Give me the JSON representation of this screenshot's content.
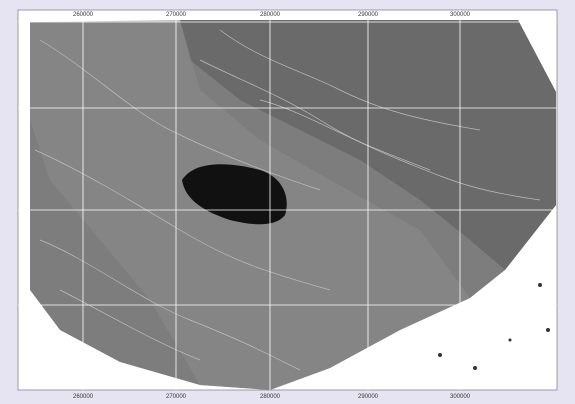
{
  "map": {
    "x_labels": [
      "260000",
      "270000",
      "280000",
      "290000",
      "300000"
    ]
  }
}
